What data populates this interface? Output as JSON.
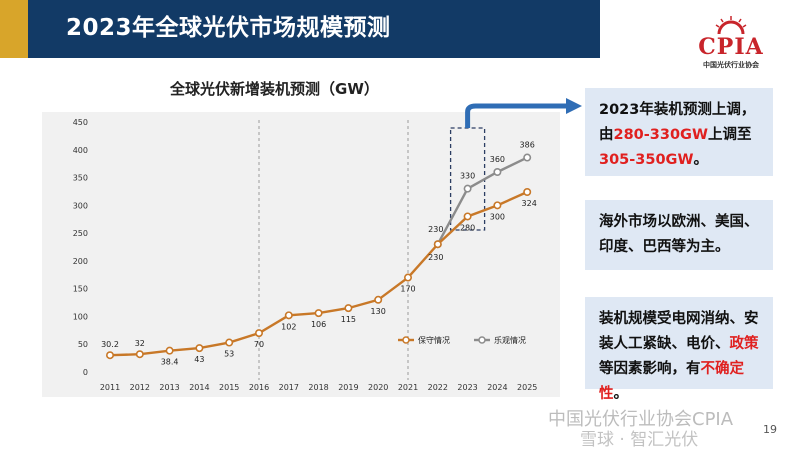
{
  "slide": {
    "title": "2023年全球光伏市场规模预测",
    "page_number": "19"
  },
  "logo": {
    "text": "CPIA",
    "subtitle": "中国光伏行业协会"
  },
  "info_boxes": {
    "box1": {
      "line1": "2023年装机预测上调，",
      "line2_prefix": "由",
      "line2_red": "280-330GW",
      "line2_suffix": "上调至",
      "line3_red": "305-350GW",
      "line3_suffix": "。"
    },
    "box2": {
      "text": "海外市场以欧洲、美国、印度、巴西等为主。"
    },
    "box3": {
      "text_a": "装机规模受电网消纳、安装人工紧缺、电价、",
      "text_red1": "政策",
      "text_b": "等因素影响，有",
      "text_red2": "不确定性",
      "text_c": "。"
    }
  },
  "watermark": {
    "line1": "中国光伏行业协会CPIA",
    "line2": "雪球 · 智汇光伏"
  },
  "colors": {
    "title_bg": "#123a66",
    "accent": "#d8a52a",
    "conservative": "#c87828",
    "optimistic": "#8c8c8c",
    "arrow": "#2f6db5",
    "highlight_red": "#e0201f"
  },
  "chart_data": {
    "type": "line",
    "title": "全球光伏新增装机预测（GW）",
    "x": [
      2011,
      2012,
      2013,
      2014,
      2015,
      2016,
      2017,
      2018,
      2019,
      2020,
      2021,
      2022,
      2023,
      2024,
      2025
    ],
    "x_labels": [
      "2011",
      "2012",
      "2013",
      "2014",
      "2015",
      "2016",
      "2017",
      "2018",
      "2019",
      "2020",
      "2021",
      "2022",
      "2023",
      "2024",
      "2025"
    ],
    "ylim": [
      0,
      450
    ],
    "yticks": [
      0,
      50,
      100,
      150,
      200,
      250,
      300,
      350,
      400,
      450
    ],
    "series": [
      {
        "name": "保守情况",
        "x": [
          2011,
          2012,
          2013,
          2014,
          2015,
          2016,
          2017,
          2018,
          2019,
          2020,
          2021,
          2022,
          2023,
          2024,
          2025
        ],
        "values": [
          30.2,
          32,
          38.4,
          43,
          53,
          70,
          102,
          106,
          115,
          130,
          170,
          230,
          280,
          300,
          324
        ],
        "labels": [
          "30.2",
          "32",
          "38.4",
          "43",
          "53",
          "70",
          "102",
          "106",
          "115",
          "130",
          "170",
          "230",
          "280",
          "300",
          "324"
        ]
      },
      {
        "name": "乐观情况",
        "x": [
          2022,
          2023,
          2024,
          2025
        ],
        "values": [
          230,
          330,
          360,
          386
        ],
        "labels": [
          "230",
          "330",
          "360",
          "386"
        ]
      }
    ],
    "dashed_vlines": [
      2016,
      2021
    ],
    "highlight_box_x": 2023,
    "grid": false,
    "legend": "bottom-right"
  }
}
